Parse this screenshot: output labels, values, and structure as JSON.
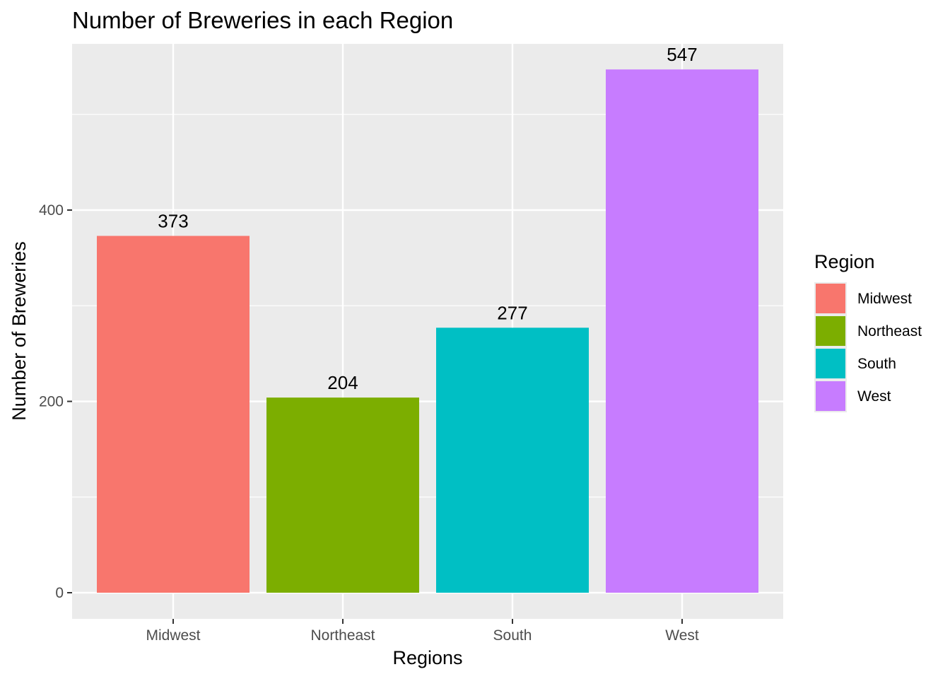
{
  "chart_data": {
    "type": "bar",
    "title": "Number of Breweries in each Region",
    "xlabel": "Regions",
    "ylabel": "Number of Breweries",
    "categories": [
      "Midwest",
      "Northeast",
      "South",
      "West"
    ],
    "values": [
      373,
      204,
      277,
      547
    ],
    "data_labels": [
      "373",
      "204",
      "277",
      "547"
    ],
    "colors": [
      "#F8766D",
      "#7CAE00",
      "#00BFC4",
      "#C77CFF"
    ],
    "ylim": [
      -26,
      575
    ],
    "y_ticks": [
      0,
      200,
      400
    ],
    "y_tick_labels": [
      "0",
      "200",
      "400"
    ],
    "y_minor_ticks": [
      100,
      300,
      500
    ],
    "grid": true,
    "panel_background": "#EBEBEB",
    "grid_color": "#FFFFFF",
    "legend": {
      "title": "Region",
      "position": "right",
      "entries": [
        "Midwest",
        "Northeast",
        "South",
        "West"
      ]
    }
  }
}
